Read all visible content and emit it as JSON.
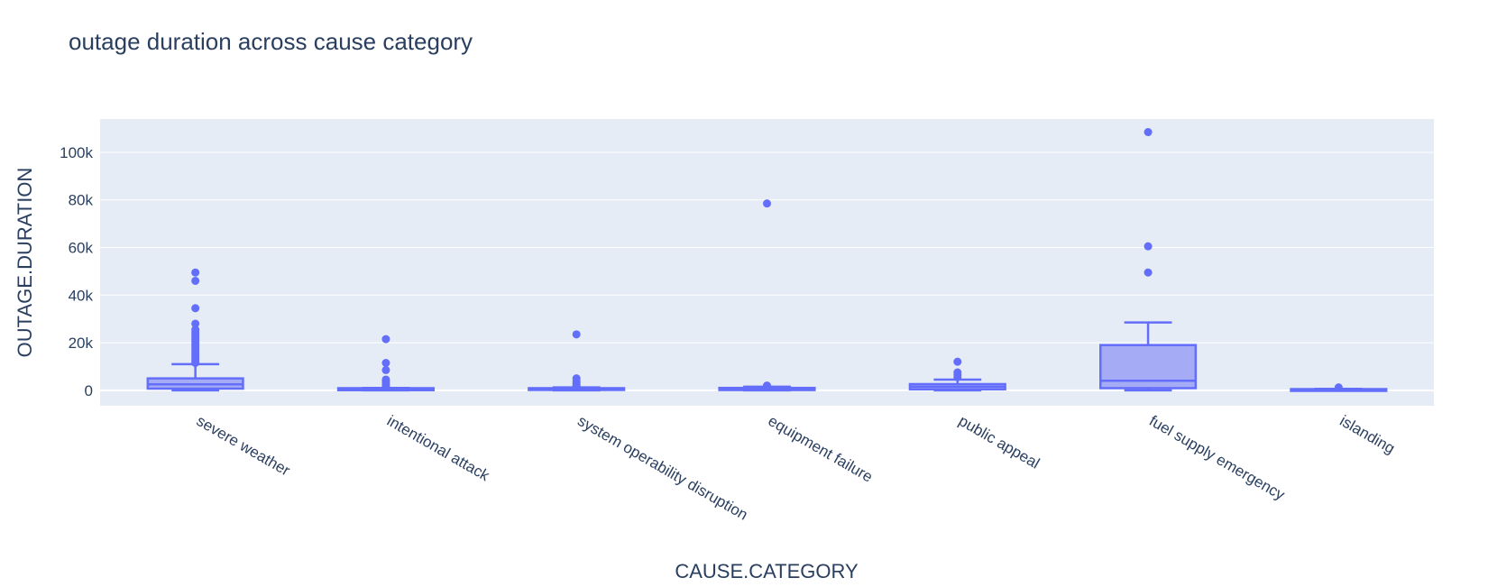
{
  "chart_data": {
    "type": "box",
    "title": "outage duration across cause category",
    "xlabel": "CAUSE.CATEGORY",
    "ylabel": "OUTAGE.DURATION",
    "ylim": [
      -6500,
      114000
    ],
    "yticks": [
      0,
      20000,
      40000,
      60000,
      80000,
      100000
    ],
    "ytick_labels": [
      "0",
      "20k",
      "40k",
      "60k",
      "80k",
      "100k"
    ],
    "grid": true,
    "color": "#636efa",
    "fill": "#a5abf5",
    "plot_bg": "#e5ecf6",
    "categories": [
      "severe weather",
      "intentional attack",
      "system operability disruption",
      "equipment failure",
      "public appeal",
      "fuel supply emergency",
      "islanding"
    ],
    "boxes": [
      {
        "category": "severe weather",
        "min": 0,
        "q1": 700,
        "median": 2500,
        "q3": 5000,
        "max": 11000,
        "outliers": [
          11500,
          12500,
          13500,
          14500,
          15500,
          16500,
          17500,
          18500,
          19500,
          20500,
          21500,
          22500,
          23500,
          24500,
          25500,
          28000,
          34500,
          46000,
          49500
        ]
      },
      {
        "category": "intentional attack",
        "min": 0,
        "q1": 50,
        "median": 200,
        "q3": 900,
        "max": 1000,
        "outliers": [
          1500,
          2200,
          3000,
          3800,
          4500,
          8500,
          11500,
          21500
        ]
      },
      {
        "category": "system operability disruption",
        "min": 0,
        "q1": 150,
        "median": 300,
        "q3": 900,
        "max": 1200,
        "outliers": [
          1800,
          2500,
          3200,
          3800,
          5000,
          23500
        ]
      },
      {
        "category": "equipment failure",
        "min": 0,
        "q1": 100,
        "median": 300,
        "q3": 1000,
        "max": 1500,
        "outliers": [
          2000,
          78500
        ]
      },
      {
        "category": "public appeal",
        "min": 0,
        "q1": 400,
        "median": 1500,
        "q3": 2600,
        "max": 4500,
        "outliers": [
          5500,
          6500,
          7500,
          12000
        ]
      },
      {
        "category": "fuel supply emergency",
        "min": 0,
        "q1": 900,
        "median": 4000,
        "q3": 19000,
        "max": 28500,
        "outliers": [
          49500,
          60500,
          108500
        ]
      },
      {
        "category": "islanding",
        "min": 0,
        "q1": 50,
        "median": 200,
        "q3": 500,
        "max": 600,
        "outliers": [
          1200
        ]
      }
    ]
  }
}
